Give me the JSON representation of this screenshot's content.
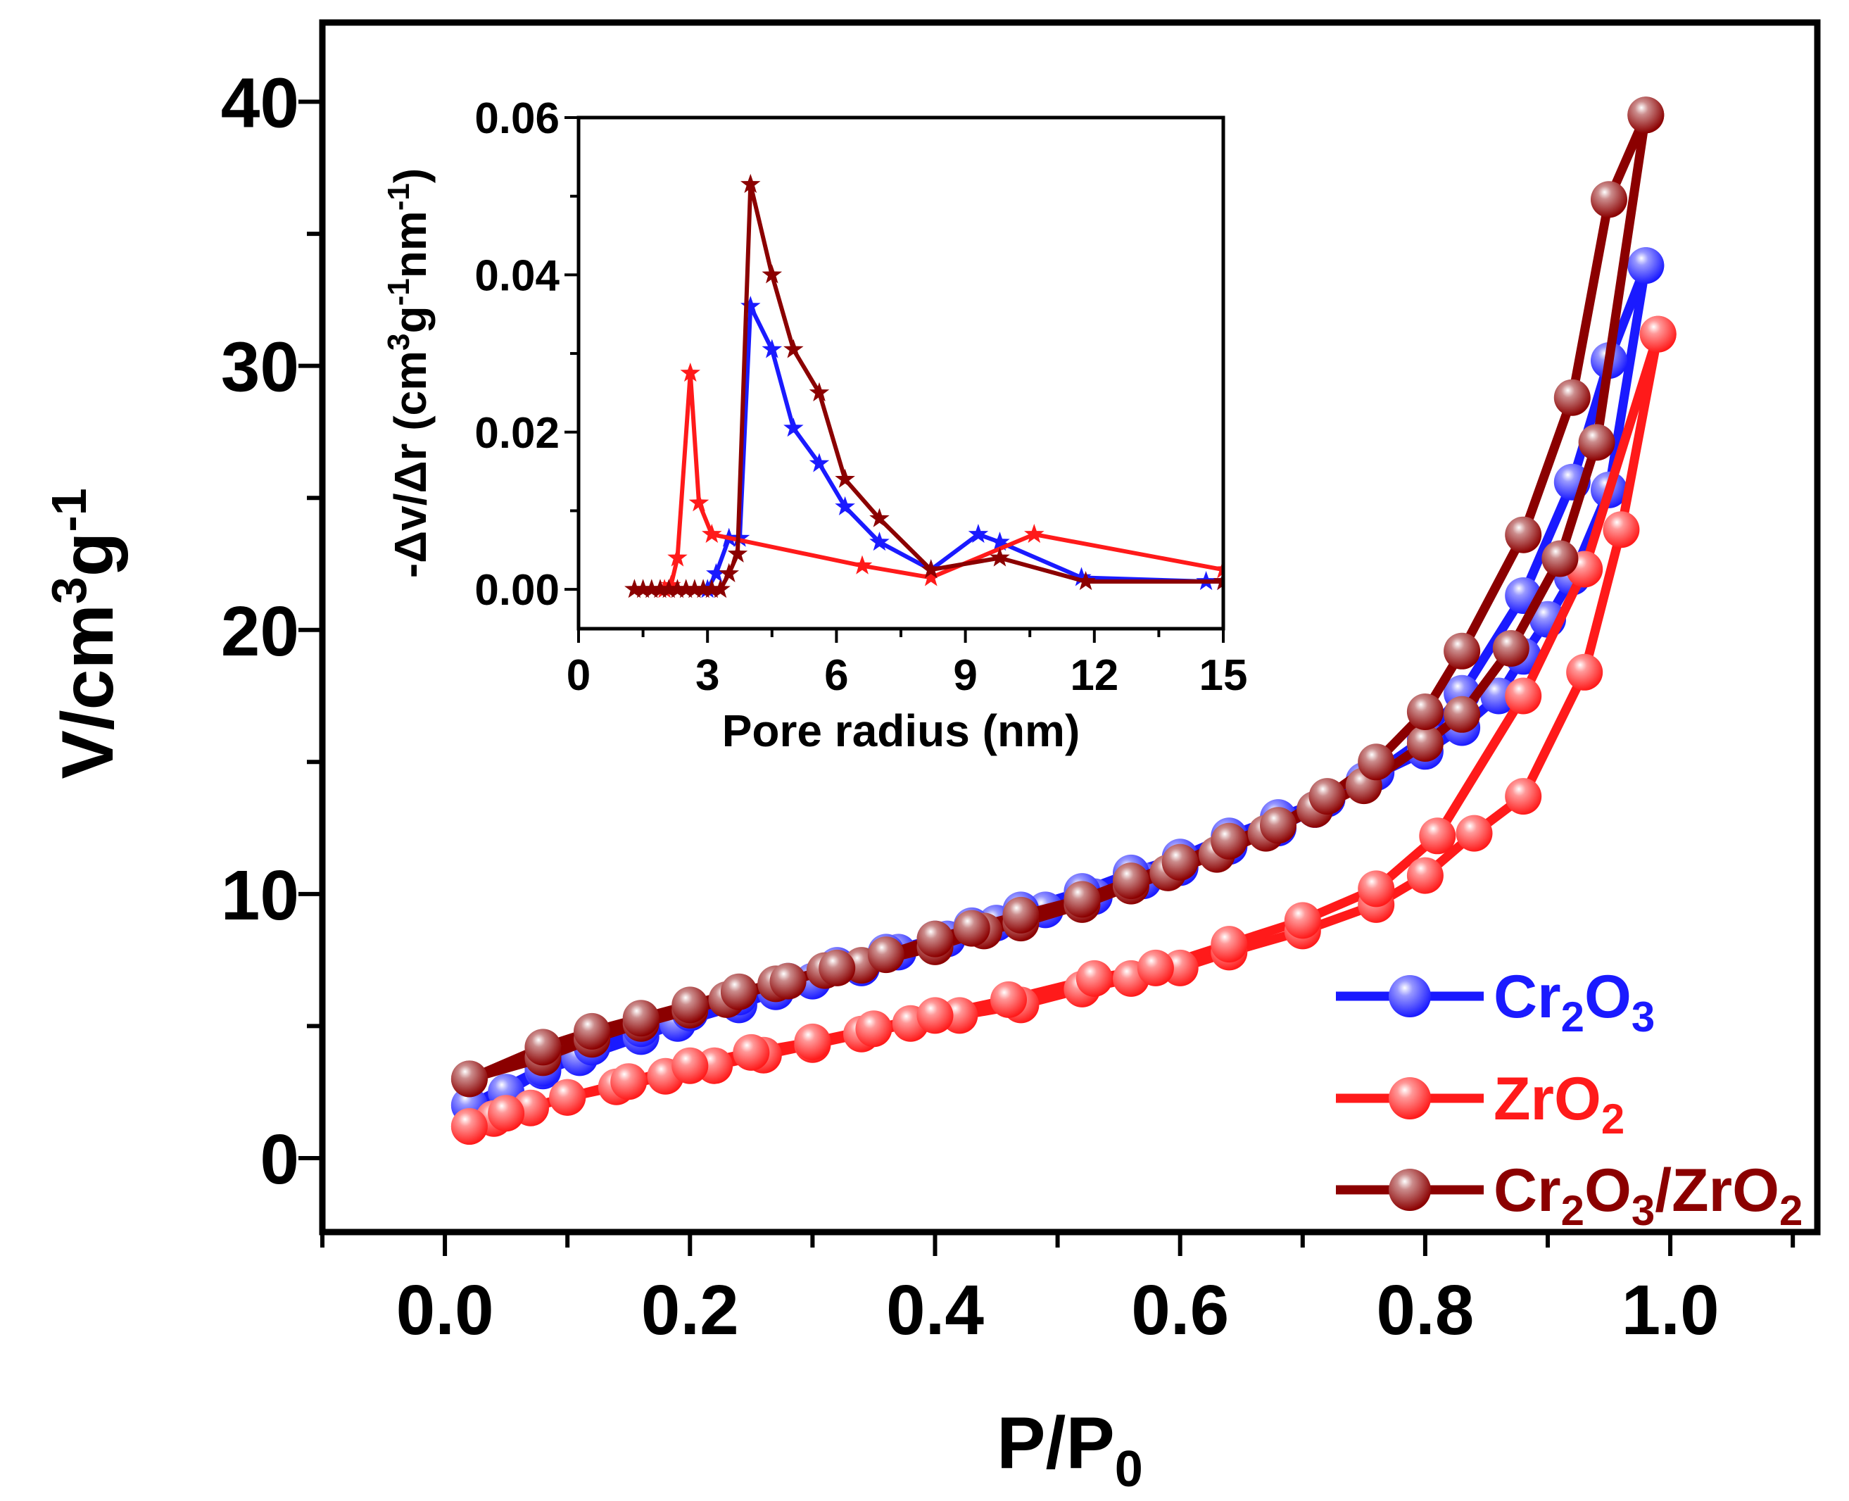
{
  "chart_data": [
    {
      "type": "line",
      "role": "main",
      "xlabel": "P/P0",
      "xlabel_main": "P/P",
      "xlabel_sub": "0",
      "ylabel": "V/cm3g-1",
      "ylabel_parts": [
        "V/cm",
        "3",
        "g",
        "-1"
      ],
      "xlim": [
        -0.1,
        1.12
      ],
      "ylim": [
        -2.8,
        43
      ],
      "xticks": [
        0.0,
        0.2,
        0.4,
        0.6,
        0.8,
        1.0
      ],
      "xtick_labels": [
        "0.0",
        "0.2",
        "0.4",
        "0.6",
        "0.8",
        "1.0"
      ],
      "yticks": [
        0,
        10,
        20,
        30,
        40
      ],
      "ytick_labels": [
        "0",
        "10",
        "20",
        "30",
        "40"
      ],
      "legend_position": "bottom-right",
      "legend": [
        {
          "series": "Cr2O3",
          "parts": [
            {
              "t": "Cr"
            },
            {
              "t": "2",
              "sub": true
            },
            {
              "t": "O"
            },
            {
              "t": "3",
              "sub": true
            }
          ]
        },
        {
          "series": "ZrO2",
          "parts": [
            {
              "t": "ZrO"
            },
            {
              "t": "2",
              "sub": true
            }
          ]
        },
        {
          "series": "Cr2O3/ZrO2",
          "parts": [
            {
              "t": "Cr"
            },
            {
              "t": "2",
              "sub": true
            },
            {
              "t": "O"
            },
            {
              "t": "3",
              "sub": true
            },
            {
              "t": "/ZrO"
            },
            {
              "t": "2",
              "sub": true
            }
          ]
        }
      ],
      "series": [
        {
          "name": "Cr2O3",
          "color": "#1a1aff",
          "adsorption": [
            [
              0.02,
              2.0
            ],
            [
              0.05,
              2.5
            ],
            [
              0.08,
              3.3
            ],
            [
              0.11,
              3.8
            ],
            [
              0.16,
              4.6
            ],
            [
              0.19,
              5.1
            ],
            [
              0.24,
              5.8
            ],
            [
              0.27,
              6.3
            ],
            [
              0.3,
              6.7
            ],
            [
              0.34,
              7.2
            ],
            [
              0.37,
              7.8
            ],
            [
              0.41,
              8.3
            ],
            [
              0.45,
              8.9
            ],
            [
              0.49,
              9.4
            ],
            [
              0.53,
              9.9
            ],
            [
              0.57,
              10.5
            ],
            [
              0.6,
              11.0
            ],
            [
              0.64,
              11.8
            ],
            [
              0.68,
              12.5
            ],
            [
              0.71,
              13.2
            ],
            [
              0.75,
              14.3
            ],
            [
              0.8,
              15.4
            ],
            [
              0.83,
              16.3
            ],
            [
              0.86,
              17.5
            ],
            [
              0.88,
              19.0
            ],
            [
              0.9,
              20.4
            ],
            [
              0.92,
              22.0
            ],
            [
              0.95,
              25.3
            ],
            [
              0.98,
              33.8
            ]
          ],
          "desorption": [
            [
              0.98,
              33.8
            ],
            [
              0.95,
              30.2
            ],
            [
              0.92,
              25.6
            ],
            [
              0.88,
              21.3
            ],
            [
              0.83,
              17.6
            ],
            [
              0.8,
              15.9
            ],
            [
              0.76,
              14.6
            ],
            [
              0.72,
              13.6
            ],
            [
              0.68,
              12.9
            ],
            [
              0.64,
              12.2
            ],
            [
              0.6,
              11.4
            ],
            [
              0.56,
              10.8
            ],
            [
              0.52,
              10.1
            ],
            [
              0.47,
              9.4
            ],
            [
              0.43,
              8.8
            ],
            [
              0.4,
              8.3
            ],
            [
              0.36,
              7.8
            ],
            [
              0.32,
              7.3
            ],
            [
              0.28,
              6.7
            ],
            [
              0.24,
              6.1
            ],
            [
              0.2,
              5.5
            ],
            [
              0.16,
              4.9
            ],
            [
              0.12,
              4.2
            ],
            [
              0.08,
              3.4
            ],
            [
              0.02,
              2.0
            ]
          ]
        },
        {
          "name": "ZrO2",
          "color": "#ff1a1a",
          "adsorption": [
            [
              0.02,
              1.2
            ],
            [
              0.04,
              1.5
            ],
            [
              0.07,
              1.9
            ],
            [
              0.1,
              2.3
            ],
            [
              0.14,
              2.7
            ],
            [
              0.18,
              3.1
            ],
            [
              0.22,
              3.5
            ],
            [
              0.26,
              3.9
            ],
            [
              0.3,
              4.3
            ],
            [
              0.34,
              4.7
            ],
            [
              0.38,
              5.1
            ],
            [
              0.42,
              5.4
            ],
            [
              0.47,
              5.8
            ],
            [
              0.52,
              6.4
            ],
            [
              0.56,
              6.8
            ],
            [
              0.6,
              7.2
            ],
            [
              0.64,
              7.8
            ],
            [
              0.7,
              8.6
            ],
            [
              0.76,
              9.6
            ],
            [
              0.8,
              10.7
            ],
            [
              0.84,
              12.3
            ],
            [
              0.88,
              13.7
            ],
            [
              0.93,
              18.4
            ],
            [
              0.96,
              23.8
            ],
            [
              0.99,
              31.2
            ]
          ],
          "desorption": [
            [
              0.99,
              31.2
            ],
            [
              0.93,
              22.3
            ],
            [
              0.88,
              17.5
            ],
            [
              0.81,
              12.2
            ],
            [
              0.76,
              10.2
            ],
            [
              0.7,
              9.0
            ],
            [
              0.64,
              8.1
            ],
            [
              0.58,
              7.2
            ],
            [
              0.53,
              6.8
            ],
            [
              0.46,
              6.0
            ],
            [
              0.4,
              5.4
            ],
            [
              0.35,
              4.9
            ],
            [
              0.3,
              4.4
            ],
            [
              0.25,
              4.0
            ],
            [
              0.2,
              3.5
            ],
            [
              0.15,
              2.9
            ],
            [
              0.1,
              2.3
            ],
            [
              0.05,
              1.7
            ],
            [
              0.02,
              1.2
            ]
          ]
        },
        {
          "name": "Cr2O3/ZrO2",
          "color": "#8b0000",
          "adsorption": [
            [
              0.02,
              3.0
            ],
            [
              0.08,
              3.8
            ],
            [
              0.12,
              4.5
            ],
            [
              0.16,
              5.1
            ],
            [
              0.2,
              5.6
            ],
            [
              0.23,
              6.0
            ],
            [
              0.27,
              6.6
            ],
            [
              0.31,
              7.1
            ],
            [
              0.34,
              7.3
            ],
            [
              0.4,
              8.0
            ],
            [
              0.44,
              8.6
            ],
            [
              0.47,
              8.9
            ],
            [
              0.52,
              9.6
            ],
            [
              0.56,
              10.3
            ],
            [
              0.59,
              10.8
            ],
            [
              0.63,
              11.5
            ],
            [
              0.67,
              12.3
            ],
            [
              0.71,
              13.2
            ],
            [
              0.75,
              14.1
            ],
            [
              0.8,
              15.7
            ],
            [
              0.83,
              16.8
            ],
            [
              0.87,
              19.3
            ],
            [
              0.91,
              22.7
            ],
            [
              0.94,
              27.1
            ],
            [
              0.98,
              39.5
            ]
          ],
          "desorption": [
            [
              0.98,
              39.5
            ],
            [
              0.95,
              36.3
            ],
            [
              0.92,
              28.8
            ],
            [
              0.88,
              23.6
            ],
            [
              0.83,
              19.2
            ],
            [
              0.8,
              16.9
            ],
            [
              0.76,
              15.0
            ],
            [
              0.72,
              13.7
            ],
            [
              0.68,
              12.6
            ],
            [
              0.64,
              12.0
            ],
            [
              0.6,
              11.2
            ],
            [
              0.56,
              10.5
            ],
            [
              0.52,
              9.8
            ],
            [
              0.47,
              9.2
            ],
            [
              0.43,
              8.7
            ],
            [
              0.4,
              8.3
            ],
            [
              0.36,
              7.7
            ],
            [
              0.32,
              7.2
            ],
            [
              0.28,
              6.7
            ],
            [
              0.24,
              6.3
            ],
            [
              0.2,
              5.8
            ],
            [
              0.16,
              5.3
            ],
            [
              0.12,
              4.8
            ],
            [
              0.08,
              4.2
            ],
            [
              0.02,
              3.0
            ]
          ]
        }
      ]
    },
    {
      "type": "line",
      "role": "inset",
      "xlabel": "Pore radius (nm)",
      "ylabel": "-Δv/Δr (cm3g-1nm-1)",
      "ylabel_parts": [
        "-Δv/Δr (cm",
        "3",
        "g",
        "-1",
        "nm",
        "-1",
        ")"
      ],
      "xlim": [
        0,
        15
      ],
      "ylim": [
        -0.005,
        0.06
      ],
      "xticks": [
        0,
        3,
        6,
        9,
        12,
        15
      ],
      "xtick_labels": [
        "0",
        "3",
        "6",
        "9",
        "12",
        "15"
      ],
      "yticks": [
        0.0,
        0.02,
        0.04,
        0.06
      ],
      "ytick_labels": [
        "0.00",
        "0.02",
        "0.04",
        "0.06"
      ],
      "series": [
        {
          "name": "Cr2O3",
          "color": "#1a1aff",
          "values": [
            [
              3.0,
              0.0
            ],
            [
              3.2,
              0.002
            ],
            [
              3.5,
              0.0065
            ],
            [
              3.75,
              0.0065
            ],
            [
              4.0,
              0.036
            ],
            [
              4.5,
              0.0305
            ],
            [
              5.0,
              0.0205
            ],
            [
              5.6,
              0.016
            ],
            [
              6.2,
              0.0105
            ],
            [
              7.0,
              0.006
            ],
            [
              8.2,
              0.0025
            ],
            [
              9.3,
              0.007
            ],
            [
              9.8,
              0.006
            ],
            [
              11.7,
              0.0015
            ],
            [
              14.6,
              0.001
            ],
            [
              15.0,
              0.001
            ]
          ]
        },
        {
          "name": "ZrO2",
          "color": "#ff1a1a",
          "values": [
            [
              2.0,
              0.0
            ],
            [
              2.15,
              0.0005
            ],
            [
              2.3,
              0.004
            ],
            [
              2.6,
              0.0275
            ],
            [
              2.8,
              0.011
            ],
            [
              3.1,
              0.007
            ],
            [
              6.6,
              0.003
            ],
            [
              8.2,
              0.0015
            ],
            [
              10.6,
              0.007
            ],
            [
              15.0,
              0.0025
            ]
          ]
        },
        {
          "name": "Cr2O3/ZrO2",
          "color": "#8b0000",
          "values": [
            [
              1.3,
              0.0
            ],
            [
              1.5,
              0.0
            ],
            [
              1.7,
              0.0
            ],
            [
              1.9,
              0.0
            ],
            [
              2.1,
              0.0
            ],
            [
              2.3,
              0.0
            ],
            [
              2.5,
              0.0
            ],
            [
              2.7,
              0.0
            ],
            [
              2.9,
              0.0
            ],
            [
              3.1,
              0.0
            ],
            [
              3.3,
              0.0
            ],
            [
              3.5,
              0.002
            ],
            [
              3.7,
              0.0045
            ],
            [
              4.0,
              0.0515
            ],
            [
              4.5,
              0.04
            ],
            [
              5.0,
              0.0305
            ],
            [
              5.6,
              0.025
            ],
            [
              6.2,
              0.014
            ],
            [
              7.0,
              0.009
            ],
            [
              8.2,
              0.0025
            ],
            [
              9.8,
              0.004
            ],
            [
              11.8,
              0.001
            ],
            [
              15.0,
              0.001
            ]
          ]
        }
      ]
    }
  ]
}
